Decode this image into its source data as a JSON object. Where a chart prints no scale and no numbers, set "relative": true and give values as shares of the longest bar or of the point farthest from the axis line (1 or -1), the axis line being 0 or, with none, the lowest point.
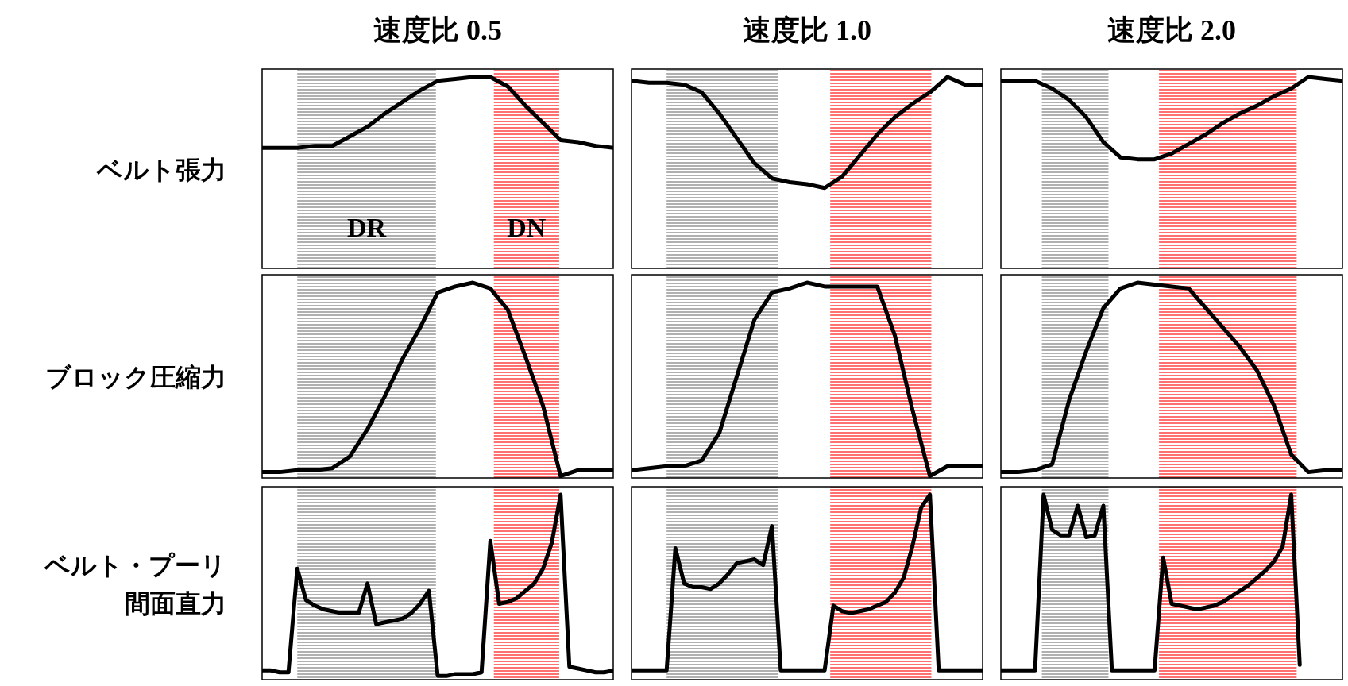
{
  "chart_data": [
    {
      "type": "line",
      "title": "速度比 0.5",
      "ylabel": "ベルト張力",
      "relative": true,
      "line_style": "solid",
      "categories": [
        null,
        null,
        null,
        null,
        null,
        null,
        null,
        null,
        null,
        null,
        null,
        null,
        null,
        null,
        null,
        null,
        null,
        null,
        null,
        null,
        null
      ],
      "annotations": [
        "DR",
        "DN"
      ],
      "series": [
        {
          "color": "#000000",
          "values": [
            0.63,
            0.63,
            0.63,
            0.64,
            0.64,
            0.69,
            0.74,
            0.81,
            0.87,
            0.93,
            0.98,
            0.99,
            1,
            1,
            0.95,
            0.85,
            0.76,
            0.67,
            0.66,
            0.64,
            0.63
          ]
        }
      ]
    },
    {
      "type": "line",
      "title": "速度比 1.0",
      "relative": true,
      "line_style": "solid",
      "categories": [
        null,
        null,
        null,
        null,
        null,
        null,
        null,
        null,
        null,
        null,
        null,
        null,
        null,
        null,
        null,
        null,
        null,
        null,
        null,
        null,
        null
      ],
      "series": [
        {
          "color": "#000000",
          "values": [
            0.98,
            0.97,
            0.97,
            0.96,
            0.92,
            0.81,
            0.68,
            0.55,
            0.47,
            0.45,
            0.44,
            0.42,
            0.48,
            0.59,
            0.7,
            0.79,
            0.86,
            0.92,
            1,
            0.96,
            0.96
          ]
        }
      ]
    },
    {
      "type": "line",
      "title": "速度比 2.0",
      "relative": true,
      "line_style": "solid",
      "categories": [
        null,
        null,
        null,
        null,
        null,
        null,
        null,
        null,
        null,
        null,
        null,
        null,
        null,
        null,
        null,
        null,
        null,
        null,
        null,
        null,
        null
      ],
      "series": [
        {
          "color": "#000000",
          "values": [
            0.98,
            0.98,
            0.98,
            0.94,
            0.88,
            0.79,
            0.66,
            0.58,
            0.57,
            0.57,
            0.6,
            0.65,
            0.7,
            0.76,
            0.81,
            0.85,
            0.9,
            0.94,
            1,
            0.99,
            0.98
          ]
        }
      ]
    },
    {
      "type": "line",
      "ylabel": "ブロック圧縮力",
      "relative": true,
      "line_style": "solid",
      "categories": [
        null,
        null,
        null,
        null,
        null,
        null,
        null,
        null,
        null,
        null,
        null,
        null,
        null,
        null,
        null,
        null,
        null,
        null,
        null,
        null,
        null
      ],
      "series": [
        {
          "color": "#000000",
          "values": [
            0.03,
            0.03,
            0.04,
            0.04,
            0.05,
            0.11,
            0.25,
            0.42,
            0.61,
            0.77,
            0.95,
            0.98,
            1,
            0.97,
            0.86,
            0.62,
            0.37,
            0.01,
            0.04,
            0.04,
            0.04
          ]
        }
      ]
    },
    {
      "type": "line",
      "relative": true,
      "line_style": "solid",
      "categories": [
        null,
        null,
        null,
        null,
        null,
        null,
        null,
        null,
        null,
        null,
        null,
        null,
        null,
        null,
        null,
        null,
        null,
        null,
        null,
        null,
        null
      ],
      "series": [
        {
          "color": "#000000",
          "values": [
            0.04,
            0.05,
            0.06,
            0.06,
            0.09,
            0.23,
            0.52,
            0.81,
            0.95,
            0.97,
            1,
            0.98,
            0.98,
            0.98,
            0.98,
            0.73,
            0.35,
            0.01,
            0.06,
            0.06,
            0.06
          ]
        }
      ]
    },
    {
      "type": "line",
      "relative": true,
      "line_style": "solid",
      "categories": [
        null,
        null,
        null,
        null,
        null,
        null,
        null,
        null,
        null,
        null,
        null,
        null,
        null,
        null,
        null,
        null,
        null,
        null,
        null,
        null,
        null
      ],
      "series": [
        {
          "color": "#000000",
          "values": [
            0.03,
            0.03,
            0.04,
            0.07,
            0.4,
            0.65,
            0.87,
            0.97,
            1,
            0.99,
            0.98,
            0.97,
            0.87,
            0.77,
            0.67,
            0.55,
            0.37,
            0.12,
            0.03,
            0.04,
            0.04
          ]
        }
      ]
    },
    {
      "type": "line",
      "ylabel": "ベルト・プーリ間面直力",
      "relative": true,
      "line_style": "solid",
      "categories": [
        null,
        null,
        null,
        null,
        null,
        null,
        null,
        null,
        null,
        null,
        null,
        null,
        null,
        null,
        null,
        null,
        null,
        null,
        null,
        null,
        null,
        null,
        null,
        null,
        null,
        null,
        null,
        null,
        null,
        null,
        null,
        null,
        null,
        null,
        null,
        null,
        null,
        null,
        null,
        null,
        null
      ],
      "series": [
        {
          "color": "#000000",
          "values": [
            0.05,
            0.05,
            0.04,
            0.04,
            0.6,
            0.43,
            0.4,
            0.38,
            0.37,
            0.36,
            0.36,
            0.36,
            0.52,
            0.3,
            0.31,
            0.32,
            0.33,
            0.36,
            0.41,
            0.48,
            0.02,
            0.02,
            0.03,
            0.03,
            0.03,
            0.04,
            0.75,
            0.41,
            0.42,
            0.44,
            0.48,
            0.52,
            0.6,
            0.74,
            1,
            0.07,
            0.06,
            0.05,
            0.04,
            0.04,
            0.05
          ]
        }
      ]
    },
    {
      "type": "line",
      "relative": true,
      "line_style": "solid",
      "categories": [
        null,
        null,
        null,
        null,
        null,
        null,
        null,
        null,
        null,
        null,
        null,
        null,
        null,
        null,
        null,
        null,
        null,
        null,
        null,
        null,
        null,
        null,
        null,
        null,
        null,
        null,
        null,
        null,
        null,
        null,
        null,
        null,
        null,
        null,
        null,
        null,
        null,
        null,
        null,
        null,
        null
      ],
      "series": [
        {
          "color": "#000000",
          "values": [
            0.05,
            0.05,
            0.05,
            0.05,
            0.05,
            0.71,
            0.52,
            0.5,
            0.5,
            0.49,
            0.52,
            0.57,
            0.63,
            0.64,
            0.65,
            0.62,
            0.83,
            0.05,
            0.05,
            0.05,
            0.05,
            0.05,
            0.05,
            0.4,
            0.37,
            0.36,
            0.37,
            0.38,
            0.4,
            0.42,
            0.47,
            0.55,
            0.72,
            0.93,
            1,
            0.05,
            0.05,
            0.05,
            0.05,
            0.05,
            0.05
          ]
        }
      ]
    },
    {
      "type": "line",
      "relative": true,
      "line_style": "solid",
      "categories": [
        null,
        null,
        null,
        null,
        null,
        null,
        null,
        null,
        null,
        null,
        null,
        null,
        null,
        null,
        null,
        null,
        null,
        null,
        null,
        null,
        null,
        null,
        null,
        null,
        null,
        null,
        null,
        null,
        null,
        null,
        null,
        null,
        null,
        null,
        null,
        null,
        null,
        null,
        null,
        null,
        null
      ],
      "series": [
        {
          "color": "#000000",
          "values": [
            0.05,
            0.05,
            0.05,
            0.05,
            0.05,
            1,
            0.81,
            0.78,
            0.78,
            0.94,
            0.77,
            0.78,
            0.94,
            0.05,
            0.05,
            0.05,
            0.05,
            0.05,
            0.05,
            0.66,
            0.41,
            0.4,
            0.39,
            0.38,
            0.39,
            0.4,
            0.42,
            0.45,
            0.48,
            0.51,
            0.55,
            0.59,
            0.64,
            0.72,
            1,
            0.08,
            null,
            null,
            null,
            null,
            null
          ]
        }
      ]
    }
  ]
}
